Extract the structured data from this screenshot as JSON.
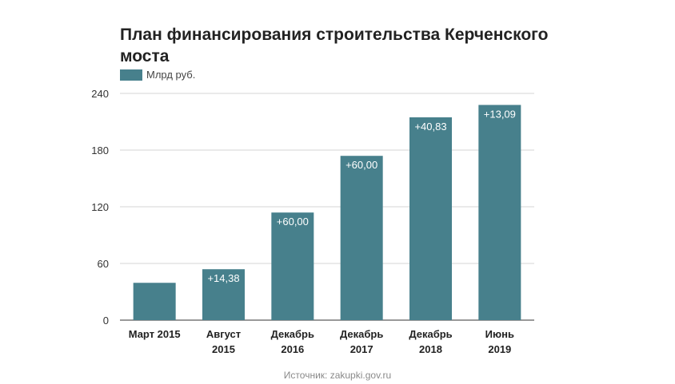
{
  "chart_data": {
    "type": "bar",
    "title": "План финансирования строительства Керченского моста",
    "legend": "Млрд руб.",
    "categories": [
      [
        "Март 2015"
      ],
      [
        "Август",
        "2015"
      ],
      [
        "Декабрь",
        "2016"
      ],
      [
        "Декабрь",
        "2017"
      ],
      [
        "Декабрь",
        "2018"
      ],
      [
        "Июнь",
        "2019"
      ]
    ],
    "series": [
      {
        "name": "Млрд руб.",
        "values": [
          39.5,
          53.9,
          113.9,
          173.9,
          214.7,
          227.8
        ]
      }
    ],
    "bar_labels": [
      "",
      "+14,38",
      "+60,00",
      "+60,00",
      "+40,83",
      "+13,09"
    ],
    "yticks": [
      0,
      60,
      120,
      180,
      240
    ],
    "ylim": [
      0,
      240
    ],
    "grid": true,
    "legend_position": "top-left",
    "color": "#47808c"
  },
  "source": "Источник: zakupki.gov.ru"
}
